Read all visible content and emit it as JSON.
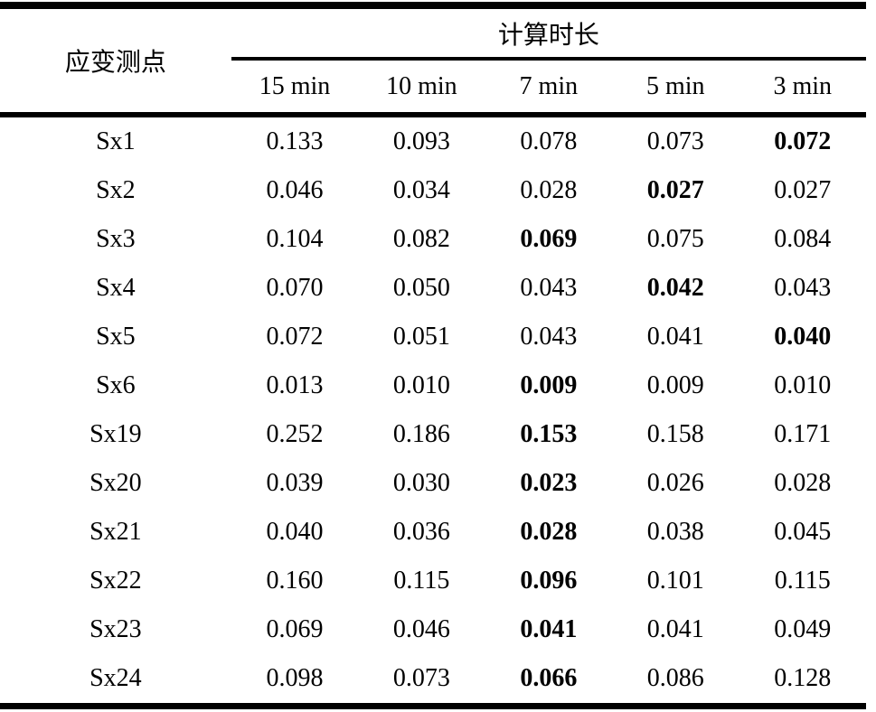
{
  "table": {
    "col1_header": "应变测点",
    "group_header": "计算时长",
    "sub_headers": [
      "15 min",
      "10 min",
      "7 min",
      "5 min",
      "3 min"
    ],
    "rows": [
      {
        "label": "Sx1",
        "values": [
          "0.133",
          "0.093",
          "0.078",
          "0.073",
          "0.072"
        ],
        "bold_index": 4
      },
      {
        "label": "Sx2",
        "values": [
          "0.046",
          "0.034",
          "0.028",
          "0.027",
          "0.027"
        ],
        "bold_index": 3
      },
      {
        "label": "Sx3",
        "values": [
          "0.104",
          "0.082",
          "0.069",
          "0.075",
          "0.084"
        ],
        "bold_index": 2
      },
      {
        "label": "Sx4",
        "values": [
          "0.070",
          "0.050",
          "0.043",
          "0.042",
          "0.043"
        ],
        "bold_index": 3
      },
      {
        "label": "Sx5",
        "values": [
          "0.072",
          "0.051",
          "0.043",
          "0.041",
          "0.040"
        ],
        "bold_index": 4
      },
      {
        "label": "Sx6",
        "values": [
          "0.013",
          "0.010",
          "0.009",
          "0.009",
          "0.010"
        ],
        "bold_index": 2
      },
      {
        "label": "Sx19",
        "values": [
          "0.252",
          "0.186",
          "0.153",
          "0.158",
          "0.171"
        ],
        "bold_index": 2
      },
      {
        "label": "Sx20",
        "values": [
          "0.039",
          "0.030",
          "0.023",
          "0.026",
          "0.028"
        ],
        "bold_index": 2
      },
      {
        "label": "Sx21",
        "values": [
          "0.040",
          "0.036",
          "0.028",
          "0.038",
          "0.045"
        ],
        "bold_index": 2
      },
      {
        "label": "Sx22",
        "values": [
          "0.160",
          "0.115",
          "0.096",
          "0.101",
          "0.115"
        ],
        "bold_index": 2
      },
      {
        "label": "Sx23",
        "values": [
          "0.069",
          "0.046",
          "0.041",
          "0.041",
          "0.049"
        ],
        "bold_index": 2
      },
      {
        "label": "Sx24",
        "values": [
          "0.098",
          "0.073",
          "0.066",
          "0.086",
          "0.128"
        ],
        "bold_index": 2
      }
    ]
  }
}
